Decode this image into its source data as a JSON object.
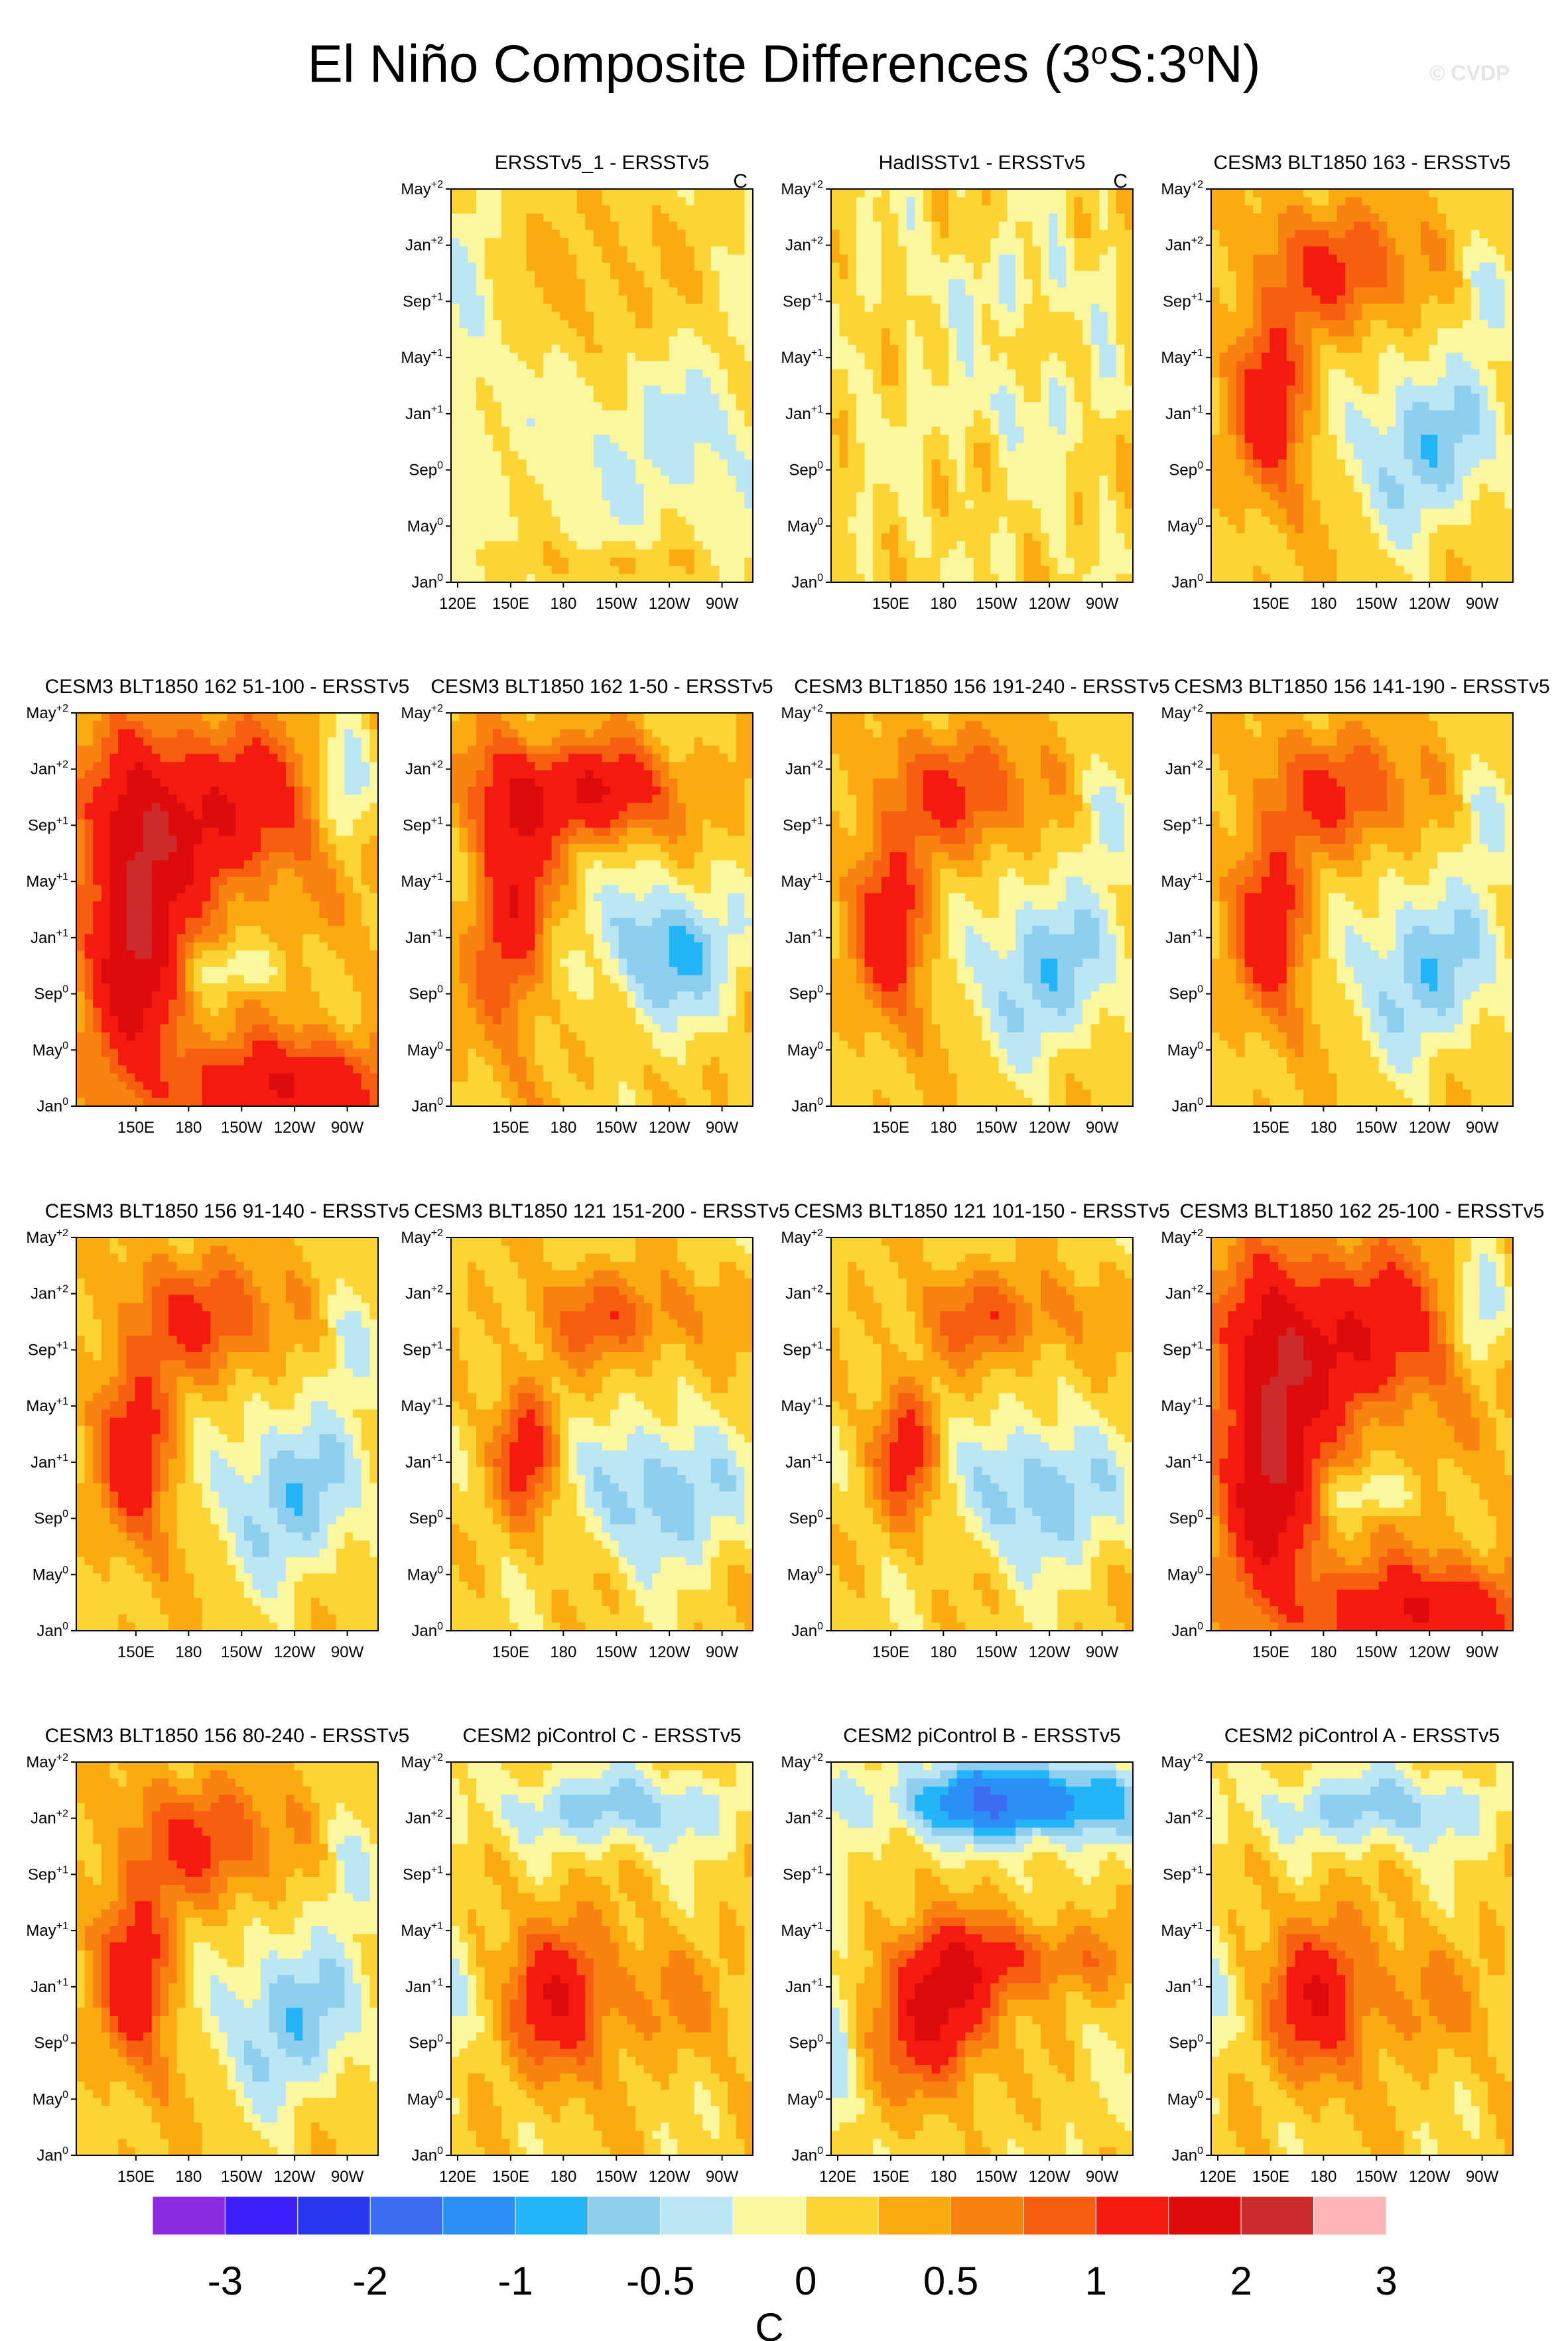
{
  "title": "El Niño Composite Differences (3°S:3°N)",
  "title_parts": {
    "prefix": "El Niño Composite Differences (3",
    "deg1": "o",
    "mid": "S:3",
    "deg2": "o",
    "suffix": "N)"
  },
  "watermark": "© CVDP",
  "chart_data": {
    "type": "heatmap",
    "description_units": "C",
    "y_axis": {
      "ticks": [
        {
          "month": "May",
          "sup": "+2"
        },
        {
          "month": "Jan",
          "sup": "+2"
        },
        {
          "month": "Sep",
          "sup": "+1"
        },
        {
          "month": "May",
          "sup": "+1"
        },
        {
          "month": "Jan",
          "sup": "+1"
        },
        {
          "month": "Sep",
          "sup": "0"
        },
        {
          "month": "May",
          "sup": "0"
        },
        {
          "month": "Jan",
          "sup": "0"
        }
      ]
    },
    "x_axis": {
      "ticks_full": [
        "120E",
        "150E",
        "180",
        "150W",
        "120W",
        "90W"
      ],
      "ticks_short": [
        "150E",
        "180",
        "150W",
        "120W",
        "90W"
      ]
    },
    "colorbar": {
      "unit": "C",
      "colors": [
        "#8b2be2",
        "#3a1ffb",
        "#2836f0",
        "#3c6df0",
        "#2c8ef7",
        "#22b6f7",
        "#8ecff0",
        "#bde6f5",
        "#fbf79e",
        "#fcd434",
        "#faab12",
        "#fa8210",
        "#f85e10",
        "#f51a10",
        "#dd0b0b",
        "#cd2b2b",
        "#fcb4b4"
      ],
      "labels": [
        "-3",
        "-2",
        "-1",
        "-0.5",
        "0",
        "0.5",
        "1",
        "2",
        "3"
      ]
    },
    "panels": [
      {
        "title": "ERSSTv5_1 - ERSSTv5",
        "corner_label": "C",
        "pattern": "weak_obs1",
        "xticks": "full"
      },
      {
        "title": "HadISSTv1 - ERSSTv5",
        "corner_label": "C",
        "pattern": "weak_obs2",
        "xticks": "short"
      },
      {
        "title": "CESM3 BLT1850 163 - ERSSTv5",
        "pattern": "model_a",
        "xticks": "short"
      },
      {
        "title": "CESM3 BLT1850 162 51-100 - ERSSTv5",
        "pattern": "model_strong",
        "xticks": "short"
      },
      {
        "title": "CESM3 BLT1850 162 1-50 - ERSSTv5",
        "pattern": "model_b",
        "xticks": "short"
      },
      {
        "title": "CESM3 BLT1850 156 191-240 - ERSSTv5",
        "pattern": "model_a",
        "xticks": "short"
      },
      {
        "title": "CESM3 BLT1850 156 141-190 - ERSSTv5",
        "pattern": "model_a",
        "xticks": "short"
      },
      {
        "title": "CESM3 BLT1850 156 91-140 - ERSSTv5",
        "pattern": "model_a",
        "xticks": "short"
      },
      {
        "title": "CESM3 BLT1850 121 151-200 - ERSSTv5",
        "pattern": "model_c",
        "xticks": "short"
      },
      {
        "title": "CESM3 BLT1850 121 101-150 - ERSSTv5",
        "pattern": "model_c",
        "xticks": "short"
      },
      {
        "title": "CESM3 BLT1850 162 25-100 - ERSSTv5",
        "pattern": "model_strong",
        "xticks": "short"
      },
      {
        "title": "CESM3 BLT1850 156 80-240 - ERSSTv5",
        "pattern": "model_a",
        "xticks": "short"
      },
      {
        "title": "CESM2 piControl C - ERSSTv5",
        "pattern": "cesm2",
        "xticks": "full"
      },
      {
        "title": "CESM2 piControl B - ERSSTv5",
        "pattern": "cesm2_strong",
        "xticks": "full"
      },
      {
        "title": "CESM2 piControl A - ERSSTv5",
        "pattern": "cesm2",
        "xticks": "full"
      }
    ]
  }
}
